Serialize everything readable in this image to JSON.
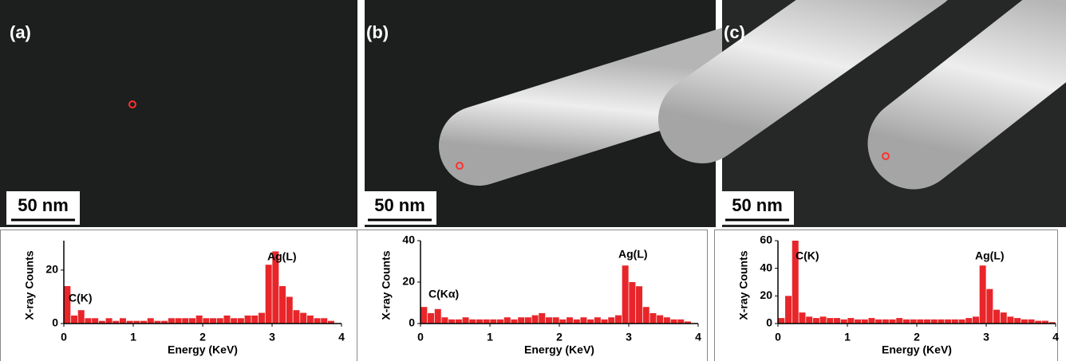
{
  "chart_data": [
    {
      "type": "bar",
      "panel_label": "(a)",
      "scale_bar": "50 nm",
      "x_label": "Energy (KeV)",
      "y_label": "X-ray Counts",
      "annotations": [
        "C(K)",
        "Ag(L)"
      ],
      "color": "#e8262a",
      "x": [
        0.05,
        0.15,
        0.25,
        0.35,
        0.45,
        0.55,
        0.65,
        0.75,
        0.85,
        0.95,
        1.05,
        1.15,
        1.25,
        1.35,
        1.45,
        1.55,
        1.65,
        1.75,
        1.85,
        1.95,
        2.05,
        2.15,
        2.25,
        2.35,
        2.45,
        2.55,
        2.65,
        2.75,
        2.85,
        2.95,
        3.05,
        3.15,
        3.25,
        3.35,
        3.45,
        3.55,
        3.65,
        3.75,
        3.85,
        3.95
      ],
      "values": [
        14,
        3,
        5,
        2,
        2,
        1,
        2,
        1,
        2,
        1,
        1,
        1,
        2,
        1,
        1,
        2,
        2,
        2,
        2,
        3,
        2,
        2,
        2,
        3,
        2,
        2,
        3,
        3,
        4,
        22,
        27,
        14,
        10,
        5,
        4,
        3,
        2,
        2,
        1,
        0
      ],
      "xlim": [
        0,
        4
      ],
      "xticks": [
        0,
        1,
        2,
        3,
        4
      ],
      "ylim": [
        0,
        31
      ],
      "yticks": [
        0,
        20
      ]
    },
    {
      "type": "bar",
      "panel_label": "(b)",
      "scale_bar": "50 nm",
      "x_label": "Energy (KeV)",
      "y_label": "X-ray Counts",
      "annotations": [
        "C(Kα)",
        "Ag(L)"
      ],
      "color": "#e8262a",
      "x": [
        0.05,
        0.15,
        0.25,
        0.35,
        0.45,
        0.55,
        0.65,
        0.75,
        0.85,
        0.95,
        1.05,
        1.15,
        1.25,
        1.35,
        1.45,
        1.55,
        1.65,
        1.75,
        1.85,
        1.95,
        2.05,
        2.15,
        2.25,
        2.35,
        2.45,
        2.55,
        2.65,
        2.75,
        2.85,
        2.95,
        3.05,
        3.15,
        3.25,
        3.35,
        3.45,
        3.55,
        3.65,
        3.75,
        3.85,
        3.95
      ],
      "values": [
        8,
        5,
        7,
        3,
        2,
        2,
        3,
        2,
        2,
        2,
        2,
        2,
        3,
        2,
        3,
        3,
        4,
        5,
        3,
        3,
        2,
        3,
        2,
        3,
        2,
        3,
        2,
        3,
        4,
        28,
        20,
        18,
        8,
        5,
        4,
        3,
        2,
        2,
        1,
        0
      ],
      "xlim": [
        0,
        4
      ],
      "xticks": [
        0,
        1,
        2,
        3,
        4
      ],
      "ylim": [
        0,
        40
      ],
      "yticks": [
        0,
        20,
        40
      ]
    },
    {
      "type": "bar",
      "panel_label": "(c)",
      "scale_bar": "50 nm",
      "x_label": "Energy (KeV)",
      "y_label": "X-ray Counts",
      "annotations": [
        "C(K)",
        "Ag(L)"
      ],
      "color": "#e8262a",
      "x": [
        0.05,
        0.15,
        0.25,
        0.35,
        0.45,
        0.55,
        0.65,
        0.75,
        0.85,
        0.95,
        1.05,
        1.15,
        1.25,
        1.35,
        1.45,
        1.55,
        1.65,
        1.75,
        1.85,
        1.95,
        2.05,
        2.15,
        2.25,
        2.35,
        2.45,
        2.55,
        2.65,
        2.75,
        2.85,
        2.95,
        3.05,
        3.15,
        3.25,
        3.35,
        3.45,
        3.55,
        3.65,
        3.75,
        3.85,
        3.95
      ],
      "values": [
        4,
        20,
        60,
        8,
        5,
        4,
        5,
        4,
        4,
        3,
        4,
        3,
        3,
        4,
        3,
        3,
        3,
        4,
        3,
        3,
        3,
        3,
        3,
        3,
        3,
        3,
        3,
        4,
        5,
        42,
        25,
        10,
        8,
        5,
        4,
        3,
        3,
        2,
        2,
        1
      ],
      "xlim": [
        0,
        4
      ],
      "xticks": [
        0,
        1,
        2,
        3,
        4
      ],
      "ylim": [
        0,
        60
      ],
      "yticks": [
        0,
        20,
        40,
        60
      ]
    }
  ]
}
